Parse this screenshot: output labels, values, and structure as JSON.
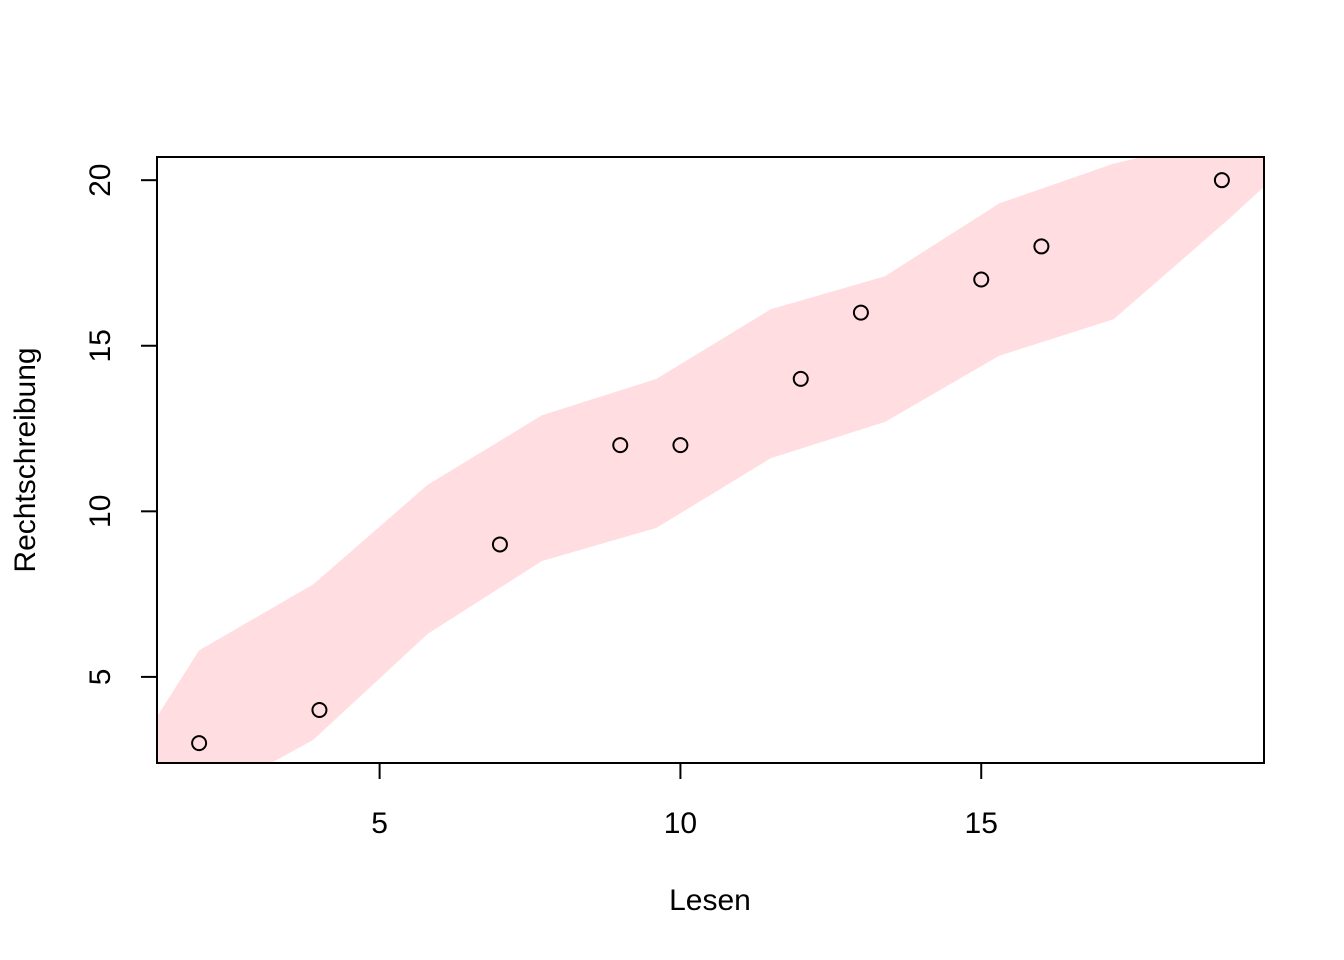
{
  "chart_data": {
    "type": "scatter",
    "title": "",
    "xlabel": "Lesen",
    "ylabel": "Rechtschreibung",
    "xlim": [
      1.3,
      19.7
    ],
    "ylim": [
      2.4,
      20.7
    ],
    "xticks": [
      "5",
      "10",
      "15"
    ],
    "yticks": [
      "5",
      "10",
      "15",
      "20"
    ],
    "grid": false,
    "points": [
      {
        "x": 2,
        "y": 3
      },
      {
        "x": 4,
        "y": 4
      },
      {
        "x": 7,
        "y": 9
      },
      {
        "x": 9,
        "y": 12
      },
      {
        "x": 10,
        "y": 12
      },
      {
        "x": 12,
        "y": 14
      },
      {
        "x": 13,
        "y": 16
      },
      {
        "x": 15,
        "y": 17
      },
      {
        "x": 16,
        "y": 18
      },
      {
        "x": 19,
        "y": 20
      }
    ],
    "band": {
      "color": "#ffdde1",
      "x": [
        1.3,
        2.0,
        3.9,
        5.8,
        7.7,
        9.6,
        11.5,
        13.4,
        15.3,
        17.2,
        19.1,
        19.7
      ],
      "upper": [
        3.8,
        5.8,
        7.8,
        10.8,
        12.9,
        14.0,
        16.1,
        17.1,
        19.3,
        20.5,
        21.3,
        21.5
      ],
      "lower": [
        1.0,
        1.2,
        3.1,
        6.3,
        8.5,
        9.5,
        11.6,
        12.7,
        14.7,
        15.8,
        18.8,
        19.8
      ]
    },
    "point_style": "open-circle",
    "point_color": "#000000"
  }
}
